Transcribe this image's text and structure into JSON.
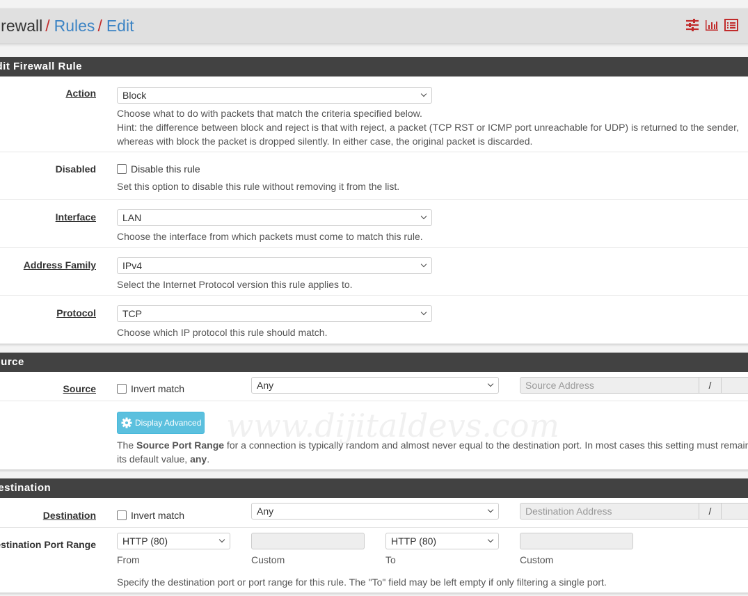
{
  "breadcrumb": {
    "items": [
      "Firewall",
      "Rules",
      "Edit"
    ],
    "separator": "/"
  },
  "header_icons": [
    "sliders-icon",
    "bar-chart-icon",
    "list-icon"
  ],
  "colors": {
    "accent": "#c12b2b",
    "link": "#3b83c4",
    "panel_header": "#424242",
    "button_info": "#5bc0de"
  },
  "edit_panel": {
    "title": "Edit Firewall Rule",
    "action": {
      "label": "Action",
      "value": "Block",
      "help": "Choose what to do with packets that match the criteria specified below.",
      "hint": "Hint: the difference between block and reject is that with reject, a packet (TCP RST or ICMP port unreachable for UDP) is returned to the sender,",
      "hint2": "whereas with block the packet is dropped silently. In either case, the original packet is discarded."
    },
    "disabled": {
      "label": "Disabled",
      "checkbox": "Disable this rule",
      "checked": false,
      "help": "Set this option to disable this rule without removing it from the list."
    },
    "interface": {
      "label": "Interface",
      "value": "LAN",
      "help": "Choose the interface from which packets must come to match this rule."
    },
    "address_family": {
      "label": "Address Family",
      "value": "IPv4",
      "help": "Select the Internet Protocol version this rule applies to."
    },
    "protocol": {
      "label": "Protocol",
      "value": "TCP",
      "help": "Choose which IP protocol this rule should match."
    }
  },
  "source_panel": {
    "title": "Source",
    "label": "Source",
    "invert": "Invert match",
    "type": "Any",
    "address_placeholder": "Source Address",
    "slash": "/",
    "advanced_button": "Display Advanced",
    "help_pre": "The ",
    "help_bold": "Source Port Range",
    "help_post": " for a connection is typically random and almost never equal to the destination port. In most cases this setting must remain at",
    "help2_pre": "its default value, ",
    "help2_bold": "any",
    "help2_post": "."
  },
  "destination_panel": {
    "title": "Destination",
    "label": "Destination",
    "invert": "Invert match",
    "type": "Any",
    "address_placeholder": "Destination Address",
    "slash": "/",
    "port_range": {
      "label": "Destination Port Range",
      "from": "HTTP (80)",
      "to": "HTTP (80)",
      "from_label": "From",
      "custom_label": "Custom",
      "to_label": "To",
      "custom2_label": "Custom",
      "help": "Specify the destination port or port range for this rule. The \"To\" field may be left empty if only filtering a single port."
    }
  },
  "watermark": "www.dijitaldevs.com"
}
